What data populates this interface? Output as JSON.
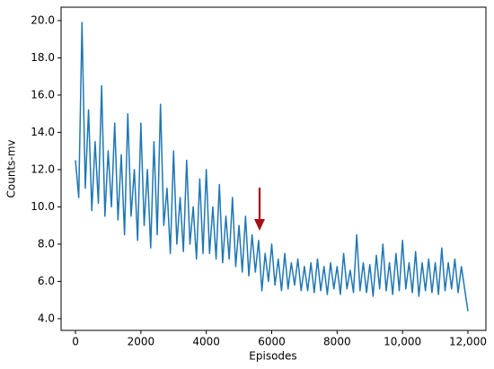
{
  "chart_data": {
    "type": "line",
    "xlabel": "Episodes",
    "ylabel": "Counts-mv",
    "x": [
      0,
      100,
      200,
      300,
      400,
      500,
      600,
      700,
      800,
      900,
      1000,
      1100,
      1200,
      1300,
      1400,
      1500,
      1600,
      1700,
      1800,
      1900,
      2000,
      2100,
      2200,
      2300,
      2400,
      2500,
      2600,
      2700,
      2800,
      2900,
      3000,
      3100,
      3200,
      3300,
      3400,
      3500,
      3600,
      3700,
      3800,
      3900,
      4000,
      4100,
      4200,
      4300,
      4400,
      4500,
      4600,
      4700,
      4800,
      4900,
      5000,
      5100,
      5200,
      5300,
      5400,
      5500,
      5600,
      5700,
      5800,
      5900,
      6000,
      6100,
      6200,
      6300,
      6400,
      6500,
      6600,
      6700,
      6800,
      6900,
      7000,
      7100,
      7200,
      7300,
      7400,
      7500,
      7600,
      7700,
      7800,
      7900,
      8000,
      8100,
      8200,
      8300,
      8400,
      8500,
      8600,
      8700,
      8800,
      8900,
      9000,
      9100,
      9200,
      9300,
      9400,
      9500,
      9600,
      9700,
      9800,
      9900,
      10000,
      10100,
      10200,
      10300,
      10400,
      10500,
      10600,
      10700,
      10800,
      10900,
      11000,
      11100,
      11200,
      11300,
      11400,
      11500,
      11600,
      11700,
      11800,
      11900,
      12000
    ],
    "series": [
      {
        "color": "#1f77b4",
        "values": [
          12.5,
          10.5,
          19.9,
          11,
          15.2,
          9.8,
          13.5,
          10.2,
          16.5,
          9.5,
          13,
          10,
          14.5,
          9.3,
          12.8,
          8.5,
          15,
          9.5,
          12,
          8.2,
          14.5,
          9,
          12,
          7.8,
          13.5,
          8.5,
          15.5,
          9,
          11,
          7.5,
          13,
          8,
          10.5,
          7.6,
          12.5,
          8,
          10,
          7.2,
          11.5,
          7.5,
          12,
          7.5,
          10,
          7.2,
          11.2,
          7,
          9.5,
          7.2,
          10.5,
          6.8,
          9,
          6.5,
          9.5,
          6.3,
          8.5,
          6.5,
          8.2,
          5.5,
          7.5,
          6,
          8,
          5.8,
          7.2,
          5.5,
          7.5,
          5.6,
          7,
          5.8,
          7.2,
          5.5,
          6.8,
          5.5,
          7,
          5.4,
          7.2,
          5.5,
          6.8,
          5.3,
          7,
          5.6,
          6.8,
          5.3,
          7.5,
          5.6,
          6.6,
          5.4,
          8.5,
          5.5,
          7,
          5.4,
          6.9,
          5.2,
          7.4,
          5.6,
          8,
          5.5,
          7,
          5.3,
          7.5,
          5.5,
          8.2,
          5.6,
          7,
          5.4,
          7.6,
          5.2,
          7,
          5.5,
          7.2,
          5.4,
          7,
          5.3,
          7.8,
          5.5,
          7,
          5.6,
          7.2,
          5.4,
          6.8,
          5.6,
          4.4
        ]
      }
    ],
    "xlim": [
      -440,
      12550
    ],
    "xticks": [
      0,
      2000,
      4000,
      6000,
      8000,
      {
        "value": 10000,
        "label": "10,000"
      },
      {
        "value": 12000,
        "label": "12,000"
      }
    ],
    "ylim": [
      3.37,
      20.72
    ],
    "yticks": [
      {
        "value": 4,
        "label": "4.0"
      },
      {
        "value": 6,
        "label": "6.0"
      },
      {
        "value": 8,
        "label": "8.0"
      },
      {
        "value": 10,
        "label": "10.0"
      },
      {
        "value": 12,
        "label": "12.0"
      },
      {
        "value": 14,
        "label": "14.0"
      },
      {
        "value": 16,
        "label": "16.0"
      },
      {
        "value": 18,
        "label": "18.0"
      },
      {
        "value": 20,
        "label": "20.0"
      }
    ]
  }
}
